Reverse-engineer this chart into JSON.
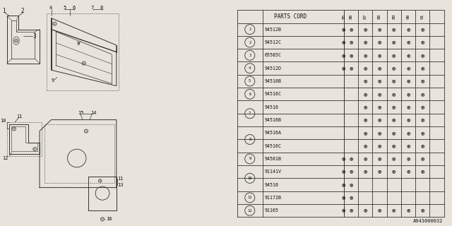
{
  "diagram_id": "A943000032",
  "bg_color": "#e8e4dc",
  "table_bg": "#ffffff",
  "col_header": "PARTS CORD",
  "year_cols": [
    "85",
    "86",
    "87",
    "88",
    "89",
    "90",
    "91"
  ],
  "rows": [
    {
      "num": "1",
      "part": "94512B",
      "stars": [
        1,
        1,
        1,
        1,
        1,
        1,
        1
      ],
      "circle": true,
      "merge": 1
    },
    {
      "num": "2",
      "part": "94512C",
      "stars": [
        1,
        1,
        1,
        1,
        1,
        1,
        1
      ],
      "circle": true,
      "merge": 1
    },
    {
      "num": "3",
      "part": "65585C",
      "stars": [
        1,
        1,
        1,
        1,
        1,
        1,
        1
      ],
      "circle": true,
      "merge": 1
    },
    {
      "num": "4",
      "part": "94512D",
      "stars": [
        1,
        1,
        1,
        1,
        1,
        1,
        1
      ],
      "circle": true,
      "merge": 1
    },
    {
      "num": "5",
      "part": "94516B",
      "stars": [
        0,
        0,
        1,
        1,
        1,
        1,
        1
      ],
      "circle": true,
      "merge": 1
    },
    {
      "num": "6",
      "part": "94516C",
      "stars": [
        0,
        0,
        1,
        1,
        1,
        1,
        1
      ],
      "circle": true,
      "merge": 1
    },
    {
      "num": "7",
      "part": "94516",
      "stars": [
        0,
        0,
        1,
        1,
        1,
        1,
        1
      ],
      "circle": true,
      "merge": 2
    },
    {
      "num": "7",
      "part": "94516B",
      "stars": [
        0,
        0,
        1,
        1,
        1,
        1,
        1
      ],
      "circle": false,
      "merge": 0
    },
    {
      "num": "8",
      "part": "94516A",
      "stars": [
        0,
        0,
        1,
        1,
        1,
        1,
        1
      ],
      "circle": true,
      "merge": 2
    },
    {
      "num": "8",
      "part": "94516C",
      "stars": [
        0,
        0,
        1,
        1,
        1,
        1,
        1
      ],
      "circle": false,
      "merge": 0
    },
    {
      "num": "9",
      "part": "94581B",
      "stars": [
        1,
        1,
        1,
        1,
        1,
        1,
        1
      ],
      "circle": true,
      "merge": 1
    },
    {
      "num": "10",
      "part": "91141V",
      "stars": [
        1,
        1,
        1,
        1,
        1,
        1,
        1
      ],
      "circle": true,
      "merge": 2
    },
    {
      "num": "10",
      "part": "94516",
      "stars": [
        1,
        1,
        0,
        0,
        0,
        0,
        0
      ],
      "circle": false,
      "merge": 0
    },
    {
      "num": "11",
      "part": "91172B",
      "stars": [
        1,
        1,
        0,
        0,
        0,
        0,
        0
      ],
      "circle": true,
      "merge": 1
    },
    {
      "num": "12",
      "part": "91165",
      "stars": [
        1,
        1,
        1,
        1,
        1,
        1,
        1
      ],
      "circle": true,
      "merge": 1
    }
  ],
  "line_color": "#333333",
  "text_color": "#111111",
  "star_symbol": "⊛"
}
